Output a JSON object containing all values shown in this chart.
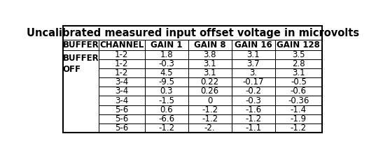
{
  "title": "Uncalibrated measured input offset voltage in microvolts",
  "col_headers": [
    "BUFFER",
    "CHANNEL",
    "GAIN 1",
    "GAIN 8",
    "GAIN 16",
    "GAIN 128"
  ],
  "buffer_label": "BUFFER\nOFF",
  "rows": [
    [
      "1-2",
      "1.8",
      "3.8",
      "3.1",
      "3.5"
    ],
    [
      "1-2",
      "-0.3",
      "3.1",
      "3.7",
      "2.8"
    ],
    [
      "1-2",
      "4.5",
      "3.1",
      "3.",
      "3.1"
    ],
    [
      "3-4",
      "-9.5",
      "0.22",
      "-0.17",
      "-0.5"
    ],
    [
      "3-4",
      "0.3",
      "0.26",
      "-0.2",
      "-0.6"
    ],
    [
      "3-4",
      "-1.5",
      "0",
      "-0.3",
      "-0.36"
    ],
    [
      "5-6",
      "0.6",
      "-1.2",
      "-1.6",
      "-1.4"
    ],
    [
      "5-6",
      "-6.6",
      "-1.2",
      "-1.2",
      "-1.9"
    ],
    [
      "5-6",
      "-1.2",
      "-2.",
      "-1.1",
      "-1.2"
    ]
  ],
  "bg_color": "#ffffff",
  "border_color": "#000000",
  "title_fontsize": 10.5,
  "header_fontsize": 8.5,
  "cell_fontsize": 8.5,
  "fig_width": 5.37,
  "fig_height": 2.25
}
